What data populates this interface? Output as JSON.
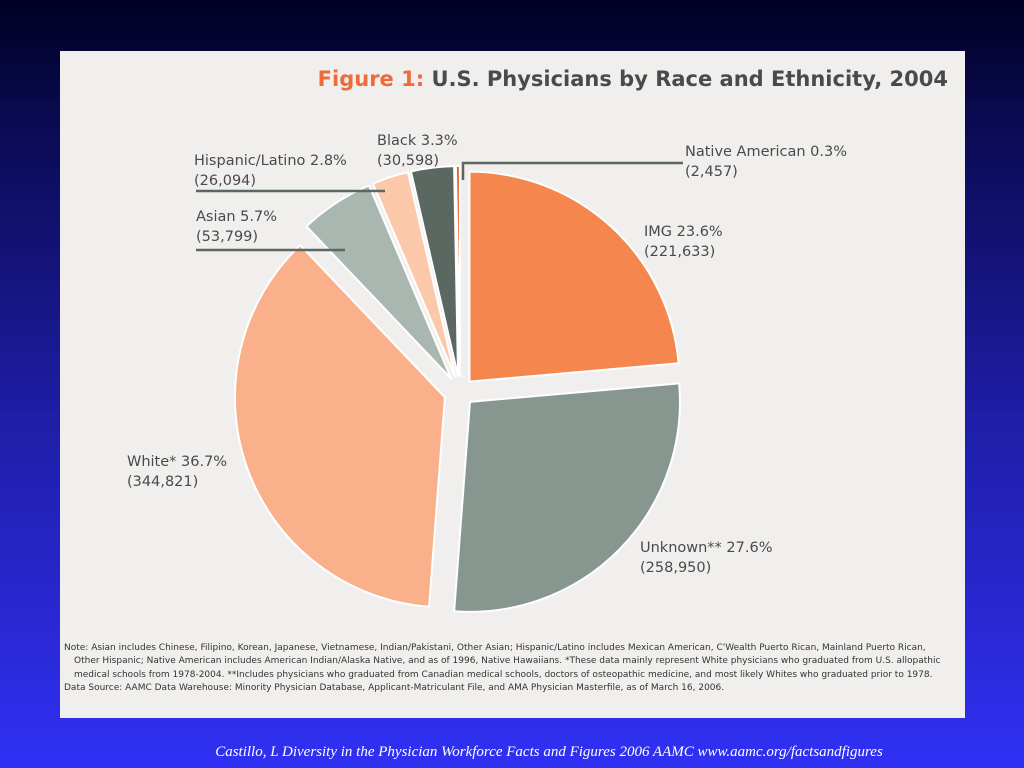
{
  "chart_data": {
    "type": "pie",
    "title_prefix": "Figure 1:",
    "title": "U.S. Physicians by Race and Ethnicity, 2004",
    "slices": [
      {
        "label": "IMG",
        "percent": 23.6,
        "percent_text": "23.6%",
        "count": "(221,633)",
        "color": "#f5864d"
      },
      {
        "label": "Unknown**",
        "percent": 27.6,
        "percent_text": "27.6%",
        "count": "(258,950)",
        "color": "#889690"
      },
      {
        "label": "White*",
        "percent": 36.7,
        "percent_text": "36.7%",
        "count": "(344,821)",
        "color": "#fab08a"
      },
      {
        "label": "Asian",
        "percent": 5.7,
        "percent_text": "5.7%",
        "count": "(53,799)",
        "color": "#aab6b0"
      },
      {
        "label": "Hispanic/Latino",
        "percent": 2.8,
        "percent_text": "2.8%",
        "count": "(26,094)",
        "color": "#fcc8aa"
      },
      {
        "label": "Black",
        "percent": 3.3,
        "percent_text": "3.3%",
        "count": "(30,598)",
        "color": "#5b6761"
      },
      {
        "label": "Native American",
        "percent": 0.3,
        "percent_text": "0.3%",
        "count": "(2,457)",
        "color": "#ee5a24"
      }
    ]
  },
  "notes": {
    "note": "Note: Asian includes Chinese, Filipino, Korean, Japanese, Vietnamese, Indian/Pakistani, Other Asian; Hispanic/Latino includes Mexican American, C'Wealth Puerto Rican, Mainland Puerto Rican, Other Hispanic; Native American includes American Indian/Alaska Native, and as of 1996, Native Hawaiians. *These data mainly represent White physicians who graduated from U.S. allopathic medical schools from 1978-2004. **Includes physicians who graduated from Canadian medical schools, doctors of osteopathic medicine, and most likely Whites who graduated prior to 1978.",
    "source": "Data Source: AAMC Data Warehouse: Minority Physician Database, Applicant-Matriculant File, and AMA Physician Masterfile, as of March 16, 2006."
  },
  "citation": "Castillo, L Diversity in the Physician Workforce Facts and Figures  2006  AAMC www.aamc.org/factsandfigures"
}
